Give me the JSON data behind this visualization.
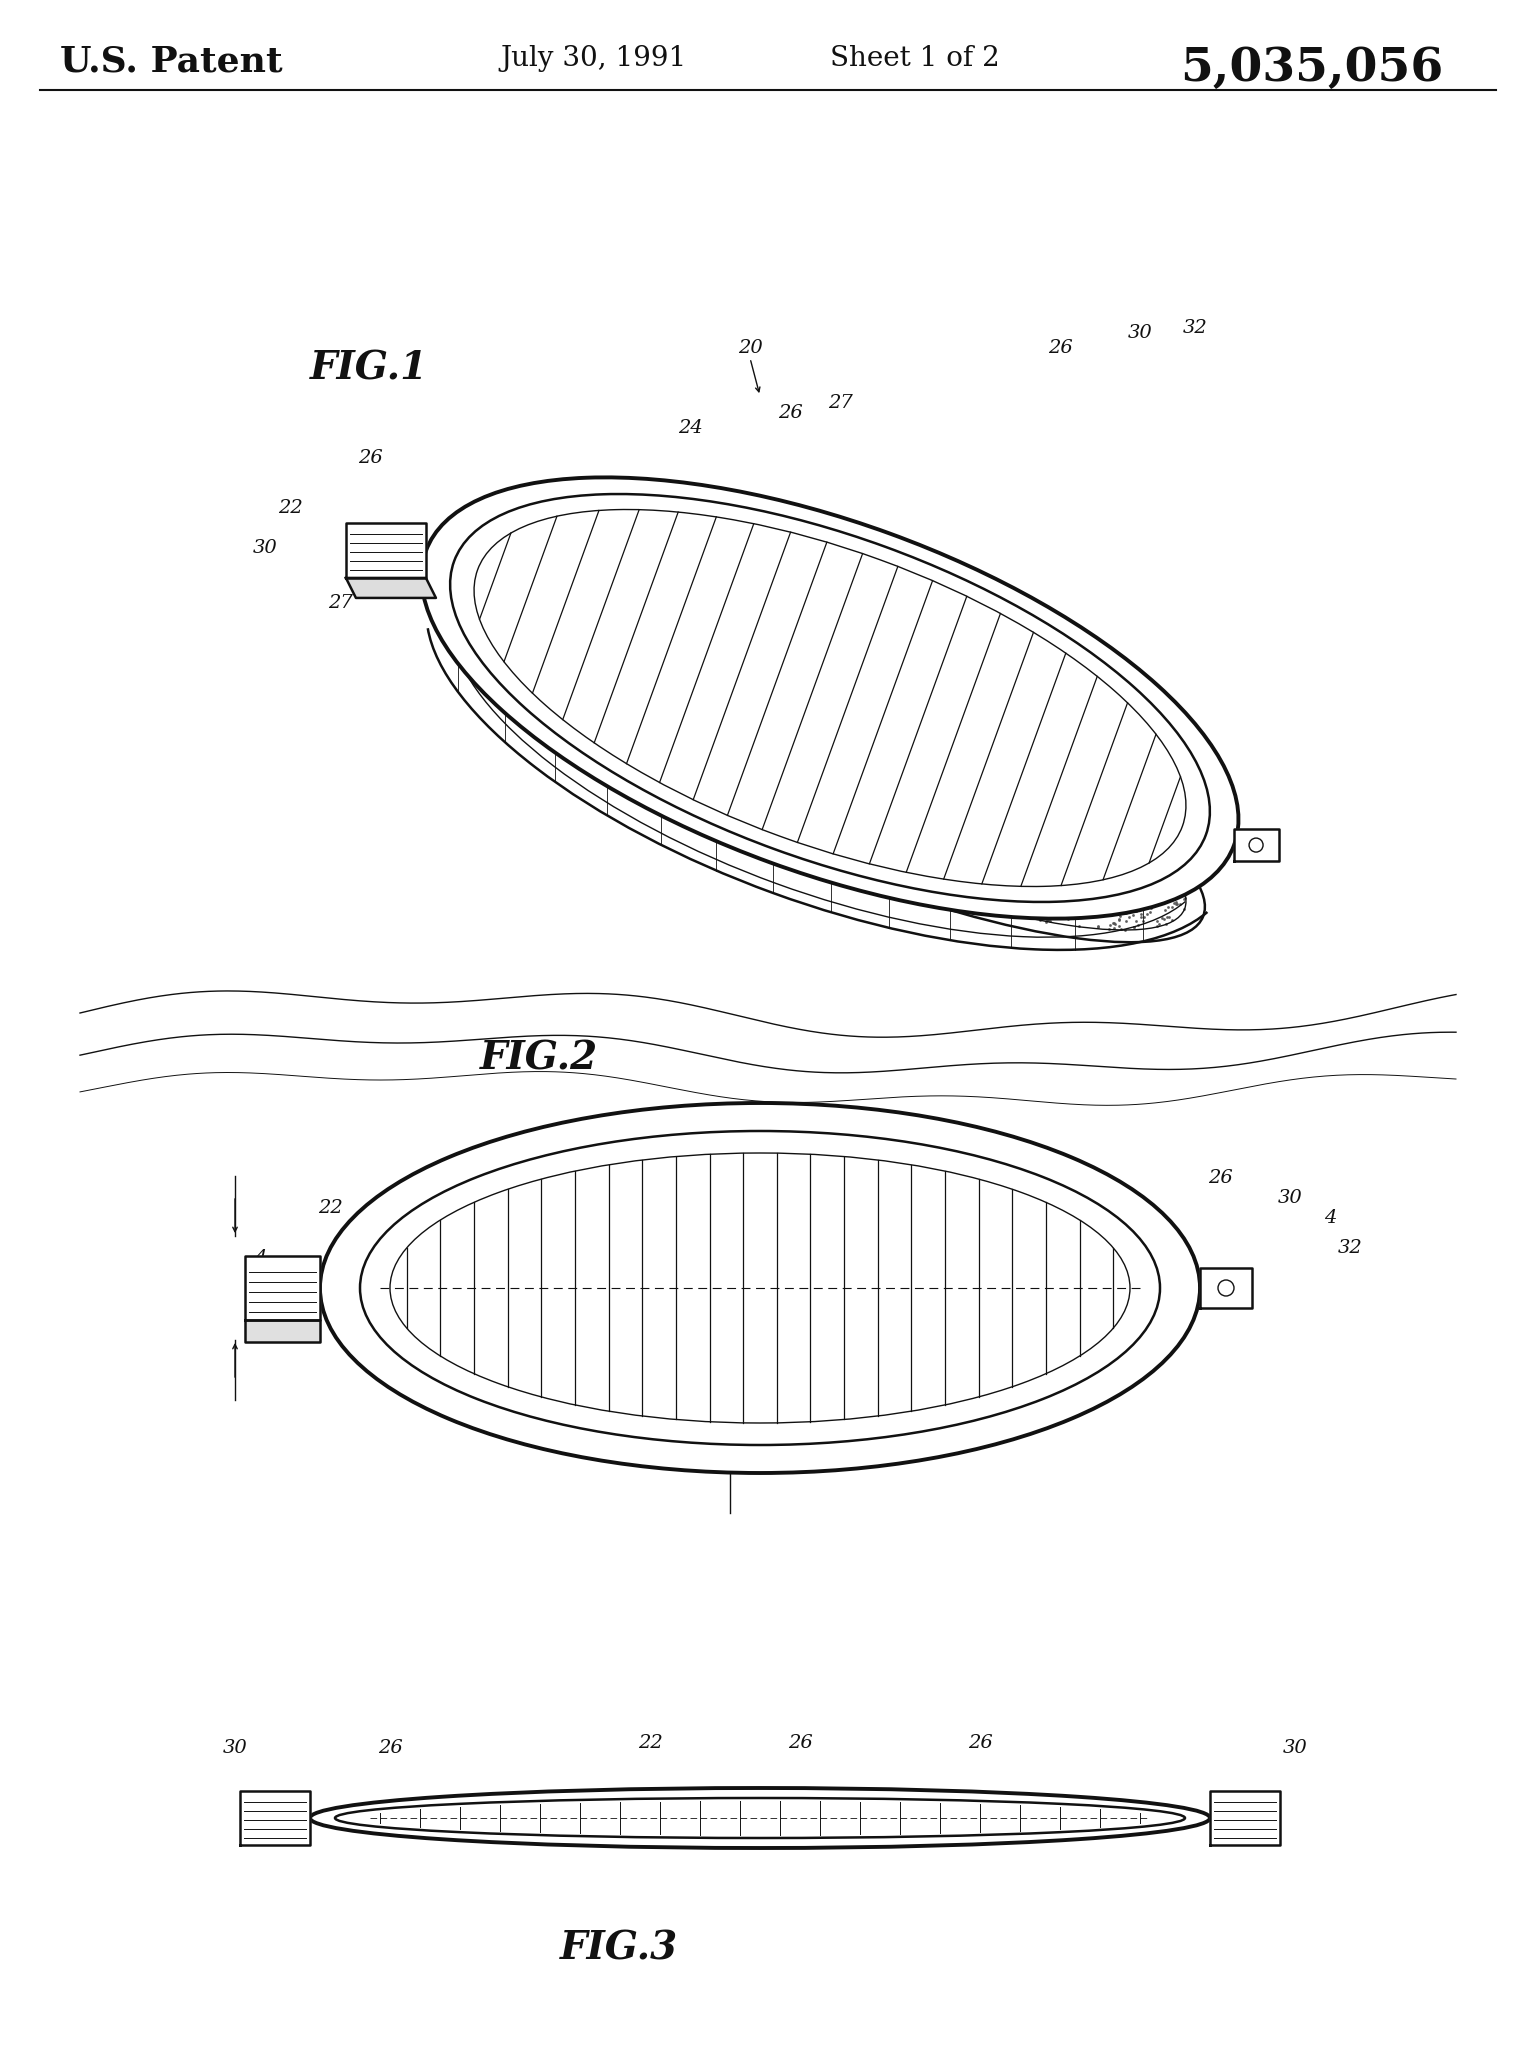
{
  "header_patent": "U.S. Patent",
  "header_date": "July 30, 1991",
  "header_sheet": "Sheet 1 of 2",
  "header_number": "5,035,056",
  "fig1_label": "FIG.1",
  "fig2_label": "FIG.2",
  "fig3_label": "FIG.3",
  "bg_color": "#ffffff",
  "line_color": "#000000"
}
